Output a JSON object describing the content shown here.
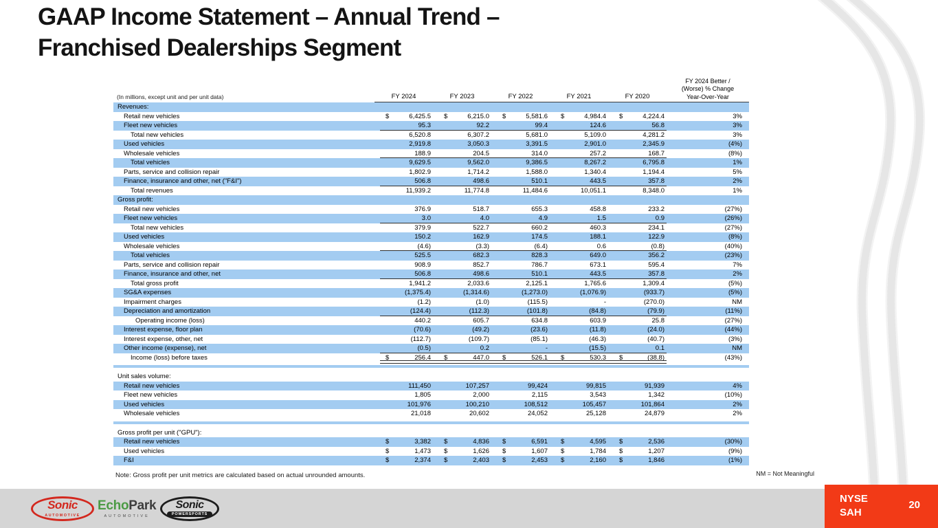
{
  "slide": {
    "title": "GAAP Income Statement – Annual Trend –\nFranchised Dealerships Segment",
    "note": "Note: Gross profit per unit metrics are calculated based on actual unrounded amounts.",
    "nm_legend": "NM = Not Meaningful",
    "ticker": "NYSE\nSAH",
    "page_number": "20"
  },
  "table": {
    "caption": "(In millions, except unit and per unit data)",
    "columns": [
      "FY 2024",
      "FY 2023",
      "FY 2022",
      "FY 2021",
      "FY 2020"
    ],
    "change_column_header": "FY 2024 Better /\n(Worse) % Change\nYear-Over-Year",
    "rows": [
      {
        "type": "section",
        "shade": "blue",
        "label": "Revenues:"
      },
      {
        "type": "data",
        "shade": "white",
        "indent": 1,
        "dollar": true,
        "label": "Retail new vehicles",
        "values": [
          "6,425.5",
          "6,215.0",
          "5,581.6",
          "4,984.4",
          "4,224.4"
        ],
        "change": "3%"
      },
      {
        "type": "data",
        "shade": "blue",
        "indent": 1,
        "label": "Fleet new vehicles",
        "values": [
          "95.3",
          "92.2",
          "99.4",
          "124.6",
          "56.8"
        ],
        "change": "3%",
        "underline": "single"
      },
      {
        "type": "data",
        "shade": "white",
        "indent": 2,
        "label": "Total new vehicles",
        "values": [
          "6,520.8",
          "6,307.2",
          "5,681.0",
          "5,109.0",
          "4,281.2"
        ],
        "change": "3%"
      },
      {
        "type": "data",
        "shade": "blue",
        "indent": 1,
        "label": "Used vehicles",
        "values": [
          "2,919.8",
          "3,050.3",
          "3,391.5",
          "2,901.0",
          "2,345.9"
        ],
        "change": "(4%)"
      },
      {
        "type": "data",
        "shade": "white",
        "indent": 1,
        "label": "Wholesale vehicles",
        "values": [
          "188.9",
          "204.5",
          "314.0",
          "257.2",
          "168.7"
        ],
        "change": "(8%)",
        "underline": "single"
      },
      {
        "type": "data",
        "shade": "blue",
        "indent": 2,
        "label": "Total vehicles",
        "values": [
          "9,629.5",
          "9,562.0",
          "9,386.5",
          "8,267.2",
          "6,795.8"
        ],
        "change": "1%"
      },
      {
        "type": "data",
        "shade": "white",
        "indent": 1,
        "label": "Parts, service and collision repair",
        "values": [
          "1,802.9",
          "1,714.2",
          "1,588.0",
          "1,340.4",
          "1,194.4"
        ],
        "change": "5%"
      },
      {
        "type": "data",
        "shade": "blue",
        "indent": 1,
        "label": "Finance, insurance and other, net (\"F&I\")",
        "values": [
          "506.8",
          "498.6",
          "510.1",
          "443.5",
          "357.8"
        ],
        "change": "2%",
        "underline": "single"
      },
      {
        "type": "data",
        "shade": "white",
        "indent": 2,
        "label": "Total revenues",
        "values": [
          "11,939.2",
          "11,774.8",
          "11,484.6",
          "10,051.1",
          "8,348.0"
        ],
        "change": "1%"
      },
      {
        "type": "section",
        "shade": "blue",
        "label": "Gross profit:"
      },
      {
        "type": "data",
        "shade": "white",
        "indent": 1,
        "label": "Retail new vehicles",
        "values": [
          "376.9",
          "518.7",
          "655.3",
          "458.8",
          "233.2"
        ],
        "change": "(27%)"
      },
      {
        "type": "data",
        "shade": "blue",
        "indent": 1,
        "label": "Fleet new vehicles",
        "values": [
          "3.0",
          "4.0",
          "4.9",
          "1.5",
          "0.9"
        ],
        "change": "(26%)",
        "underline": "single"
      },
      {
        "type": "data",
        "shade": "white",
        "indent": 2,
        "label": "Total new vehicles",
        "values": [
          "379.9",
          "522.7",
          "660.2",
          "460.3",
          "234.1"
        ],
        "change": "(27%)"
      },
      {
        "type": "data",
        "shade": "blue",
        "indent": 1,
        "label": "Used vehicles",
        "values": [
          "150.2",
          "162.9",
          "174.5",
          "188.1",
          "122.9"
        ],
        "change": "(8%)"
      },
      {
        "type": "data",
        "shade": "white",
        "indent": 1,
        "label": "Wholesale vehicles",
        "values": [
          "(4.6)",
          "(3.3)",
          "(6.4)",
          "0.6",
          "(0.8)"
        ],
        "change": "(40%)",
        "underline": "single"
      },
      {
        "type": "data",
        "shade": "blue",
        "indent": 2,
        "label": "Total vehicles",
        "values": [
          "525.5",
          "682.3",
          "828.3",
          "649.0",
          "356.2"
        ],
        "change": "(23%)"
      },
      {
        "type": "data",
        "shade": "white",
        "indent": 1,
        "label": "Parts, service and collision repair",
        "values": [
          "908.9",
          "852.7",
          "786.7",
          "673.1",
          "595.4"
        ],
        "change": "7%"
      },
      {
        "type": "data",
        "shade": "blue",
        "indent": 1,
        "label": "Finance, insurance and other, net",
        "values": [
          "506.8",
          "498.6",
          "510.1",
          "443.5",
          "357.8"
        ],
        "change": "2%",
        "underline": "single"
      },
      {
        "type": "data",
        "shade": "white",
        "indent": 2,
        "label": "Total gross profit",
        "values": [
          "1,941.2",
          "2,033.6",
          "2,125.1",
          "1,765.6",
          "1,309.4"
        ],
        "change": "(5%)"
      },
      {
        "type": "data",
        "shade": "blue",
        "indent": 1,
        "label": "SG&A expenses",
        "values": [
          "(1,375.4)",
          "(1,314.6)",
          "(1,273.0)",
          "(1,076.9)",
          "(933.7)"
        ],
        "change": "(5%)"
      },
      {
        "type": "data",
        "shade": "white",
        "indent": 1,
        "label": "Impairment charges",
        "values": [
          "(1.2)",
          "(1.0)",
          "(115.5)",
          "-",
          "(270.0)"
        ],
        "change": "NM"
      },
      {
        "type": "data",
        "shade": "blue",
        "indent": 1,
        "label": "Depreciation and amortization",
        "values": [
          "(124.4)",
          "(112.3)",
          "(101.8)",
          "(84.8)",
          "(79.9)"
        ],
        "change": "(11%)",
        "underline": "single"
      },
      {
        "type": "data",
        "shade": "white",
        "indent": 3,
        "label": "Operating income (loss)",
        "values": [
          "440.2",
          "605.7",
          "634.8",
          "603.9",
          "25.8"
        ],
        "change": "(27%)"
      },
      {
        "type": "data",
        "shade": "blue",
        "indent": 1,
        "label": "Interest expense, floor plan",
        "values": [
          "(70.6)",
          "(49.2)",
          "(23.6)",
          "(11.8)",
          "(24.0)"
        ],
        "change": "(44%)"
      },
      {
        "type": "data",
        "shade": "white",
        "indent": 1,
        "label": "Interest expense, other, net",
        "values": [
          "(112.7)",
          "(109.7)",
          "(85.1)",
          "(46.3)",
          "(40.7)"
        ],
        "change": "(3%)"
      },
      {
        "type": "data",
        "shade": "blue",
        "indent": 1,
        "label": "Other income (expense), net",
        "values": [
          "(0.5)",
          "0.2",
          "-",
          "(15.5)",
          "0.1"
        ],
        "change": "NM",
        "underline": "single"
      },
      {
        "type": "data",
        "shade": "white",
        "indent": 2,
        "dollar": true,
        "label": "Income (loss) before taxes",
        "values": [
          "256.4",
          "447.0",
          "526.1",
          "530.3",
          "(38.8)"
        ],
        "change": "(43%)",
        "underline": "double"
      },
      {
        "type": "spacer"
      },
      {
        "type": "section",
        "shade": "white",
        "label": "Unit sales volume:"
      },
      {
        "type": "data",
        "shade": "blue",
        "indent": 1,
        "label": "Retail new vehicles",
        "values": [
          "111,450",
          "107,257",
          "99,424",
          "99,815",
          "91,939"
        ],
        "change": "4%"
      },
      {
        "type": "data",
        "shade": "white",
        "indent": 1,
        "label": "Fleet new vehicles",
        "values": [
          "1,805",
          "2,000",
          "2,115",
          "3,543",
          "1,342"
        ],
        "change": "(10%)"
      },
      {
        "type": "data",
        "shade": "blue",
        "indent": 1,
        "label": "Used vehicles",
        "values": [
          "101,976",
          "100,210",
          "108,512",
          "105,457",
          "101,864"
        ],
        "change": "2%"
      },
      {
        "type": "data",
        "shade": "white",
        "indent": 1,
        "label": "Wholesale vehicles",
        "values": [
          "21,018",
          "20,602",
          "24,052",
          "25,128",
          "24,879"
        ],
        "change": "2%"
      },
      {
        "type": "spacer"
      },
      {
        "type": "section",
        "shade": "white",
        "label": "Gross profit per unit (\"GPU\"):"
      },
      {
        "type": "data",
        "shade": "blue",
        "indent": 1,
        "dollar": true,
        "label": "Retail new vehicles",
        "values": [
          "3,382",
          "4,836",
          "6,591",
          "4,595",
          "2,536"
        ],
        "change": "(30%)"
      },
      {
        "type": "data",
        "shade": "white",
        "indent": 1,
        "dollar": true,
        "label": "Used vehicles",
        "values": [
          "1,473",
          "1,626",
          "1,607",
          "1,784",
          "1,207"
        ],
        "change": "(9%)"
      },
      {
        "type": "data",
        "shade": "blue",
        "indent": 1,
        "dollar": true,
        "label": "F&I",
        "values": [
          "2,374",
          "2,403",
          "2,453",
          "2,160",
          "1,846"
        ],
        "change": "(1%)"
      }
    ]
  },
  "logos": {
    "sonic_automotive": {
      "name": "Sonic",
      "sub": "Automotive"
    },
    "echopark": {
      "echo": "Echo",
      "park": "Park",
      "sub": "AUTOMOTIVE"
    },
    "sonic_powersports": {
      "name": "Sonic",
      "sub": "Powersports"
    }
  },
  "colors": {
    "row_blue": "#A3CCF1",
    "footer_gray": "#D5D5D5",
    "accent_red": "#F23A17",
    "sonic_red": "#D3281E",
    "echopark_green": "#4C9B45"
  }
}
